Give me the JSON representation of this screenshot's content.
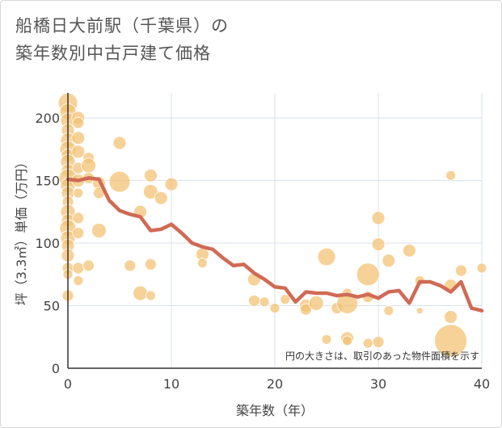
{
  "chart_data": {
    "type": "scatter",
    "title_line1": "船橋日大前駅（千葉県）の",
    "title_line2": "築年数別中古戸建て価格",
    "xlabel": "築年数（年）",
    "ylabel": "坪（3.3㎡）単価（万円）",
    "xlim": [
      0,
      40
    ],
    "ylim": [
      0,
      220
    ],
    "xticks": [
      0,
      10,
      20,
      30,
      40
    ],
    "yticks": [
      0,
      50,
      100,
      150,
      200
    ],
    "note": "円の大きさは、取引のあった物件面積を示す",
    "colors": {
      "bubble": "#f3c072",
      "line": "#d06a55",
      "grid": "#d9e2ea"
    },
    "bubbles": [
      {
        "x": 0,
        "y": 212,
        "s": 12
      },
      {
        "x": 0,
        "y": 205,
        "s": 10
      },
      {
        "x": 0,
        "y": 198,
        "s": 9
      },
      {
        "x": 0,
        "y": 190,
        "s": 8
      },
      {
        "x": 0,
        "y": 182,
        "s": 9
      },
      {
        "x": 0,
        "y": 175,
        "s": 10
      },
      {
        "x": 0,
        "y": 170,
        "s": 8
      },
      {
        "x": 0,
        "y": 165,
        "s": 9
      },
      {
        "x": 0,
        "y": 158,
        "s": 8
      },
      {
        "x": 0,
        "y": 152,
        "s": 11
      },
      {
        "x": 0,
        "y": 146,
        "s": 9
      },
      {
        "x": 0,
        "y": 140,
        "s": 8
      },
      {
        "x": 0,
        "y": 133,
        "s": 7
      },
      {
        "x": 0,
        "y": 125,
        "s": 9
      },
      {
        "x": 0,
        "y": 118,
        "s": 8
      },
      {
        "x": 0,
        "y": 112,
        "s": 10
      },
      {
        "x": 0,
        "y": 104,
        "s": 9
      },
      {
        "x": 0,
        "y": 98,
        "s": 8
      },
      {
        "x": 0,
        "y": 90,
        "s": 8
      },
      {
        "x": 0,
        "y": 80,
        "s": 7
      },
      {
        "x": 0,
        "y": 75,
        "s": 6
      },
      {
        "x": 0,
        "y": 58,
        "s": 7
      },
      {
        "x": 1,
        "y": 200,
        "s": 8
      },
      {
        "x": 1,
        "y": 196,
        "s": 7
      },
      {
        "x": 1,
        "y": 184,
        "s": 8
      },
      {
        "x": 1,
        "y": 173,
        "s": 8
      },
      {
        "x": 1,
        "y": 160,
        "s": 7
      },
      {
        "x": 1,
        "y": 150,
        "s": 8
      },
      {
        "x": 1,
        "y": 140,
        "s": 6
      },
      {
        "x": 1,
        "y": 120,
        "s": 7
      },
      {
        "x": 1,
        "y": 108,
        "s": 7
      },
      {
        "x": 1,
        "y": 80,
        "s": 7
      },
      {
        "x": 1,
        "y": 70,
        "s": 6
      },
      {
        "x": 2,
        "y": 168,
        "s": 7
      },
      {
        "x": 2,
        "y": 162,
        "s": 9
      },
      {
        "x": 2,
        "y": 152,
        "s": 7
      },
      {
        "x": 2,
        "y": 82,
        "s": 7
      },
      {
        "x": 3,
        "y": 148,
        "s": 8
      },
      {
        "x": 3,
        "y": 140,
        "s": 7
      },
      {
        "x": 3,
        "y": 110,
        "s": 9
      },
      {
        "x": 5,
        "y": 180,
        "s": 8
      },
      {
        "x": 5,
        "y": 149,
        "s": 13
      },
      {
        "x": 6,
        "y": 82,
        "s": 7
      },
      {
        "x": 7,
        "y": 125,
        "s": 8
      },
      {
        "x": 7,
        "y": 60,
        "s": 9
      },
      {
        "x": 8,
        "y": 154,
        "s": 8
      },
      {
        "x": 8,
        "y": 141,
        "s": 9
      },
      {
        "x": 8,
        "y": 83,
        "s": 7
      },
      {
        "x": 8,
        "y": 58,
        "s": 6
      },
      {
        "x": 9,
        "y": 136,
        "s": 8
      },
      {
        "x": 10,
        "y": 147,
        "s": 8
      },
      {
        "x": 13,
        "y": 91,
        "s": 8
      },
      {
        "x": 13,
        "y": 84,
        "s": 6
      },
      {
        "x": 18,
        "y": 71,
        "s": 8
      },
      {
        "x": 18,
        "y": 54,
        "s": 7
      },
      {
        "x": 19,
        "y": 53,
        "s": 6
      },
      {
        "x": 20,
        "y": 48,
        "s": 6
      },
      {
        "x": 21,
        "y": 55,
        "s": 6
      },
      {
        "x": 23,
        "y": 50,
        "s": 8
      },
      {
        "x": 23,
        "y": 47,
        "s": 7
      },
      {
        "x": 24,
        "y": 52,
        "s": 9
      },
      {
        "x": 25,
        "y": 89,
        "s": 11
      },
      {
        "x": 25,
        "y": 23,
        "s": 6
      },
      {
        "x": 26,
        "y": 48,
        "s": 7
      },
      {
        "x": 27,
        "y": 60,
        "s": 6
      },
      {
        "x": 27,
        "y": 52,
        "s": 13
      },
      {
        "x": 27,
        "y": 24,
        "s": 8
      },
      {
        "x": 27,
        "y": 22,
        "s": 6
      },
      {
        "x": 29,
        "y": 75,
        "s": 14
      },
      {
        "x": 29,
        "y": 57,
        "s": 7
      },
      {
        "x": 29,
        "y": 20,
        "s": 6
      },
      {
        "x": 30,
        "y": 120,
        "s": 8
      },
      {
        "x": 30,
        "y": 99,
        "s": 8
      },
      {
        "x": 30,
        "y": 21,
        "s": 7
      },
      {
        "x": 31,
        "y": 86,
        "s": 8
      },
      {
        "x": 31,
        "y": 46,
        "s": 6
      },
      {
        "x": 33,
        "y": 94,
        "s": 8
      },
      {
        "x": 34,
        "y": 70,
        "s": 6
      },
      {
        "x": 34,
        "y": 46,
        "s": 4
      },
      {
        "x": 37,
        "y": 154,
        "s": 6
      },
      {
        "x": 37,
        "y": 66,
        "s": 8
      },
      {
        "x": 37,
        "y": 41,
        "s": 8
      },
      {
        "x": 37,
        "y": 22,
        "s": 20
      },
      {
        "x": 38,
        "y": 78,
        "s": 7
      },
      {
        "x": 40,
        "y": 80,
        "s": 6
      }
    ],
    "line": {
      "x": [
        0,
        1,
        2,
        3,
        4,
        5,
        6,
        7,
        8,
        9,
        10,
        11,
        12,
        13,
        14,
        15,
        16,
        17,
        18,
        19,
        20,
        21,
        22,
        23,
        24,
        25,
        26,
        27,
        28,
        29,
        30,
        31,
        32,
        33,
        34,
        35,
        36,
        37,
        38,
        39,
        40
      ],
      "y": [
        151,
        150,
        152,
        151,
        134,
        126,
        123,
        121,
        110,
        111,
        115,
        108,
        100,
        97,
        95,
        88,
        82,
        83,
        76,
        71,
        65,
        64,
        53,
        61,
        60,
        60,
        58,
        59,
        57,
        59,
        56,
        61,
        62,
        52,
        69,
        69,
        66,
        61,
        69,
        48,
        46
      ]
    }
  }
}
